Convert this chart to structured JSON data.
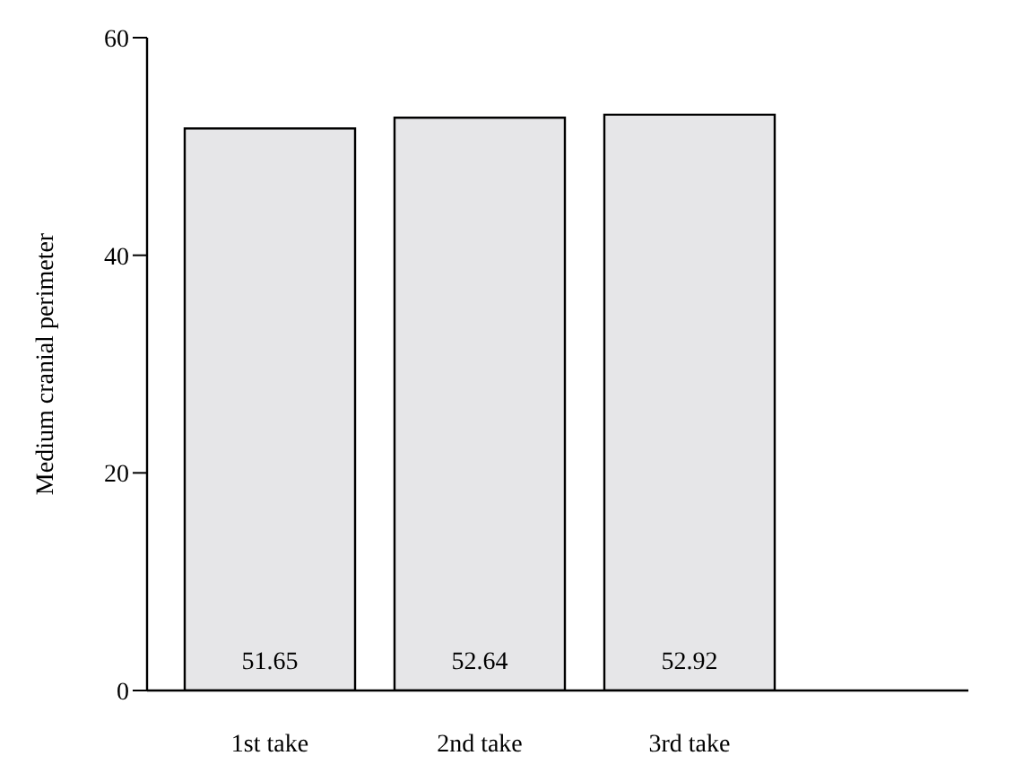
{
  "chart_data": {
    "type": "bar",
    "ylabel": "Medium cranial perimeter",
    "categories": [
      "1st take",
      "2nd take",
      "3rd take"
    ],
    "values": [
      51.65,
      52.64,
      52.92
    ],
    "color": "#e6e6e8",
    "ylim": [
      0,
      60
    ],
    "yticks": [
      0,
      20,
      40,
      60
    ],
    "grid": false,
    "legend": false,
    "data_labels": true
  }
}
